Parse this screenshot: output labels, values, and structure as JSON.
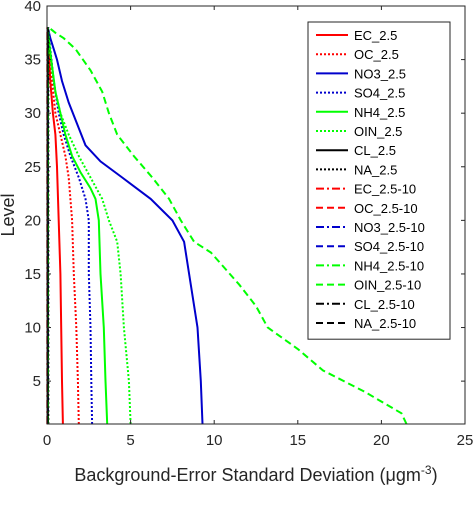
{
  "chart_data": {
    "type": "line",
    "title": "",
    "xlabel": "Background-Error Standard Deviation (μgm",
    "xlabel_superscript": "-3",
    "xlabel_suffix": ")",
    "ylabel": "Level",
    "xlim": [
      0,
      25
    ],
    "ylim": [
      1,
      40
    ],
    "x_ticks": [
      0,
      5,
      10,
      15,
      20,
      25
    ],
    "y_ticks": [
      5,
      10,
      15,
      20,
      25,
      30,
      35,
      40
    ],
    "grid": false,
    "legend_position": "top-right",
    "series": [
      {
        "name": "EC_2.5",
        "color": "#ff0000",
        "dash": "solid",
        "points": [
          [
            0.95,
            1
          ],
          [
            0.9,
            5
          ],
          [
            0.85,
            10
          ],
          [
            0.8,
            15
          ],
          [
            0.7,
            20
          ],
          [
            0.6,
            25
          ],
          [
            0.5,
            28
          ],
          [
            0.35,
            30
          ],
          [
            0.2,
            33
          ],
          [
            0.1,
            36
          ],
          [
            0.05,
            38
          ]
        ]
      },
      {
        "name": "OC_2.5",
        "color": "#ff0000",
        "dash": "dot",
        "points": [
          [
            1.9,
            1
          ],
          [
            1.85,
            5
          ],
          [
            1.75,
            10
          ],
          [
            1.6,
            15
          ],
          [
            1.5,
            20
          ],
          [
            1.4,
            22
          ],
          [
            1.3,
            24
          ],
          [
            1.1,
            26
          ],
          [
            0.8,
            28
          ],
          [
            0.5,
            30
          ],
          [
            0.3,
            33
          ],
          [
            0.1,
            36
          ],
          [
            0.05,
            38
          ]
        ]
      },
      {
        "name": "NO3_2.5",
        "color": "#0000cc",
        "dash": "solid",
        "points": [
          [
            9.3,
            1
          ],
          [
            9.2,
            5
          ],
          [
            9.0,
            10
          ],
          [
            8.5,
            15
          ],
          [
            8.2,
            18
          ],
          [
            7.5,
            20
          ],
          [
            6.2,
            22
          ],
          [
            4.5,
            24
          ],
          [
            3.2,
            25.5
          ],
          [
            2.3,
            27
          ],
          [
            1.8,
            29
          ],
          [
            1.3,
            31
          ],
          [
            0.9,
            33
          ],
          [
            0.6,
            35
          ],
          [
            0.4,
            36
          ],
          [
            0.2,
            37
          ],
          [
            0.05,
            38
          ]
        ]
      },
      {
        "name": "SO4_2.5",
        "color": "#0000cc",
        "dash": "dot",
        "points": [
          [
            2.7,
            1
          ],
          [
            2.65,
            5
          ],
          [
            2.6,
            10
          ],
          [
            2.5,
            15
          ],
          [
            2.5,
            20
          ],
          [
            2.3,
            22
          ],
          [
            1.9,
            24
          ],
          [
            1.4,
            26
          ],
          [
            1.0,
            28
          ],
          [
            0.7,
            30
          ],
          [
            0.4,
            33
          ],
          [
            0.2,
            36
          ],
          [
            0.05,
            38
          ]
        ]
      },
      {
        "name": "NH4_2.5",
        "color": "#00ff00",
        "dash": "solid",
        "points": [
          [
            3.6,
            1
          ],
          [
            3.5,
            5
          ],
          [
            3.4,
            10
          ],
          [
            3.2,
            15
          ],
          [
            3.1,
            20
          ],
          [
            2.9,
            22
          ],
          [
            2.6,
            23
          ],
          [
            2.0,
            24.5
          ],
          [
            1.5,
            26
          ],
          [
            1.1,
            28
          ],
          [
            0.8,
            30
          ],
          [
            0.5,
            32
          ],
          [
            0.25,
            35
          ],
          [
            0.1,
            37
          ],
          [
            0.05,
            38
          ]
        ]
      },
      {
        "name": "OIN_2.5",
        "color": "#00ff00",
        "dash": "dot",
        "points": [
          [
            5.0,
            1
          ],
          [
            4.9,
            5
          ],
          [
            4.6,
            10
          ],
          [
            4.4,
            15
          ],
          [
            4.2,
            18
          ],
          [
            3.7,
            20
          ],
          [
            3.3,
            22
          ],
          [
            2.6,
            24
          ],
          [
            1.9,
            26
          ],
          [
            1.3,
            28
          ],
          [
            0.8,
            30
          ],
          [
            0.5,
            32
          ],
          [
            0.3,
            34
          ],
          [
            0.1,
            37
          ],
          [
            0.05,
            38
          ]
        ]
      },
      {
        "name": "CL_2.5",
        "color": "#000000",
        "dash": "solid",
        "points": [
          [
            0.05,
            1
          ],
          [
            0.05,
            20
          ],
          [
            0.05,
            38
          ]
        ]
      },
      {
        "name": "NA_2.5",
        "color": "#000000",
        "dash": "dot",
        "points": [
          [
            0.08,
            1
          ],
          [
            0.08,
            20
          ],
          [
            0.08,
            38
          ]
        ]
      },
      {
        "name": "EC_2.5-10",
        "color": "#ff0000",
        "dash": "dashdot",
        "points": [
          [
            0.02,
            1
          ],
          [
            0.02,
            38
          ]
        ]
      },
      {
        "name": "OC_2.5-10",
        "color": "#ff0000",
        "dash": "dash",
        "points": [
          [
            0.03,
            1
          ],
          [
            0.03,
            38
          ]
        ]
      },
      {
        "name": "NO3_2.5-10",
        "color": "#0000cc",
        "dash": "dashdot",
        "points": [
          [
            0.04,
            1
          ],
          [
            0.04,
            38
          ]
        ]
      },
      {
        "name": "SO4_2.5-10",
        "color": "#0000cc",
        "dash": "dash",
        "points": [
          [
            0.05,
            1
          ],
          [
            0.05,
            38
          ]
        ]
      },
      {
        "name": "NH4_2.5-10",
        "color": "#00ff00",
        "dash": "dashdot",
        "points": [
          [
            0.06,
            1
          ],
          [
            0.06,
            38
          ]
        ]
      },
      {
        "name": "OIN_2.5-10",
        "color": "#00ff00",
        "dash": "dash",
        "points": [
          [
            21.5,
            1
          ],
          [
            21.2,
            2
          ],
          [
            19.0,
            4
          ],
          [
            16.5,
            6
          ],
          [
            15.0,
            8
          ],
          [
            13.2,
            10
          ],
          [
            12.5,
            12
          ],
          [
            11.5,
            14
          ],
          [
            9.8,
            17
          ],
          [
            8.8,
            18
          ],
          [
            8.0,
            20
          ],
          [
            7.3,
            22
          ],
          [
            6.3,
            24
          ],
          [
            5.2,
            26
          ],
          [
            4.2,
            28
          ],
          [
            3.7,
            30
          ],
          [
            3.3,
            32
          ],
          [
            2.6,
            34
          ],
          [
            1.7,
            36
          ],
          [
            1.0,
            37
          ],
          [
            0.5,
            37.5
          ],
          [
            0.1,
            38
          ]
        ]
      },
      {
        "name": "CL_2.5-10",
        "color": "#000000",
        "dash": "dashdot",
        "points": [
          [
            0.03,
            1
          ],
          [
            0.03,
            38
          ]
        ]
      },
      {
        "name": "NA_2.5-10",
        "color": "#000000",
        "dash": "dash",
        "points": [
          [
            0.04,
            1
          ],
          [
            0.04,
            38
          ]
        ]
      }
    ]
  }
}
